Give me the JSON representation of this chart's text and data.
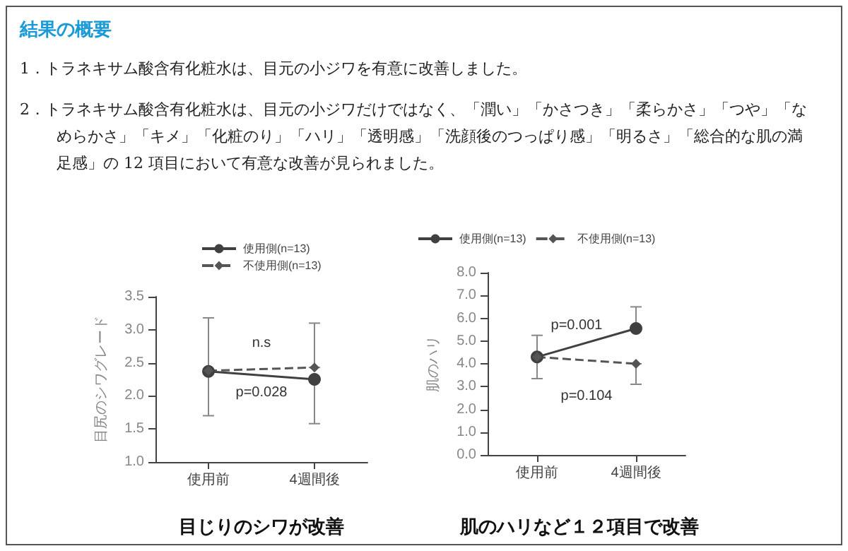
{
  "chart_data": [
    {
      "type": "line",
      "title": "目じりのシワが改善",
      "ylabel": "目尻のシワグレード",
      "annotations": [
        "結果の概要",
        "1．トラネキサム酸含有化粧水は、目元の小ジワを有意に改善しました。",
        "2．トラネキサム酸含有化粧水は、目元の小ジワだけではなく、「潤い」「かさつき」「柔らかさ」「つや」「なめらかさ」「キメ」「化粧のり」「ハリ」「透明感」「洗顔後のつっぱり感」「明るさ」「総合的な肌の満足感」の 12 項目において有意な改善が見られました。",
        "n.s",
        "p=0.028"
      ],
      "categories": [
        "使用前",
        "4週間後"
      ],
      "series": [
        {
          "name": "使用側(n=13)",
          "color": "#404040",
          "values": [
            2.37,
            2.25
          ],
          "errors": [
            [
              1.7,
              2.37
            ],
            [
              1.58,
              2.25
            ]
          ],
          "marker": "circle",
          "line_style": "solid"
        },
        {
          "name": "不使用側(n=13)",
          "color": "#555555",
          "values": [
            2.38,
            2.43
          ],
          "errors": [
            [
              2.38,
              3.18
            ],
            [
              2.43,
              3.1
            ]
          ],
          "marker": "diamond",
          "line_style": "dashed"
        }
      ],
      "ylim": [
        1,
        3.5
      ],
      "yticks": [
        {
          "value": 1,
          "label": "1.0"
        },
        {
          "value": 1.5,
          "label": "1.5"
        },
        {
          "value": 2,
          "label": "2.0"
        },
        {
          "value": 2.5,
          "label": "2.5"
        },
        {
          "value": 3,
          "label": "3.0"
        },
        {
          "value": 3.5,
          "label": "3.5"
        }
      ],
      "grid": false,
      "legend": "top"
    },
    {
      "type": "line",
      "title": "肌のハリなど１２項目で改善",
      "ylabel": "肌のハリ",
      "annotations": [
        "p=0.001",
        "p=0.104"
      ],
      "categories": [
        "使用前",
        "4週間後"
      ],
      "series": [
        {
          "name": "使用側(n=13)",
          "color": "#404040",
          "values": [
            4.3,
            5.55
          ],
          "errors": [
            [
              4.3,
              5.25
            ],
            [
              5.55,
              6.5
            ]
          ],
          "marker": "circle",
          "line_style": "solid"
        },
        {
          "name": "不使用側(n=13)",
          "color": "#555555",
          "values": [
            4.3,
            4.0
          ],
          "errors": [
            [
              3.35,
              4.3
            ],
            [
              3.1,
              4.0
            ]
          ],
          "marker": "diamond",
          "line_style": "dashed"
        }
      ],
      "ylim": [
        0,
        8
      ],
      "yticks": [
        {
          "value": 0,
          "label": "0.0"
        },
        {
          "value": 1,
          "label": "1.0"
        },
        {
          "value": 2,
          "label": "2.0"
        },
        {
          "value": 3,
          "label": "3.0"
        },
        {
          "value": 4,
          "label": "4.0"
        },
        {
          "value": 5,
          "label": "5.0"
        },
        {
          "value": 6,
          "label": "6.0"
        },
        {
          "value": 7,
          "label": "7.0"
        },
        {
          "value": 8,
          "label": "8.0"
        }
      ],
      "grid": false,
      "legend": "top"
    }
  ]
}
